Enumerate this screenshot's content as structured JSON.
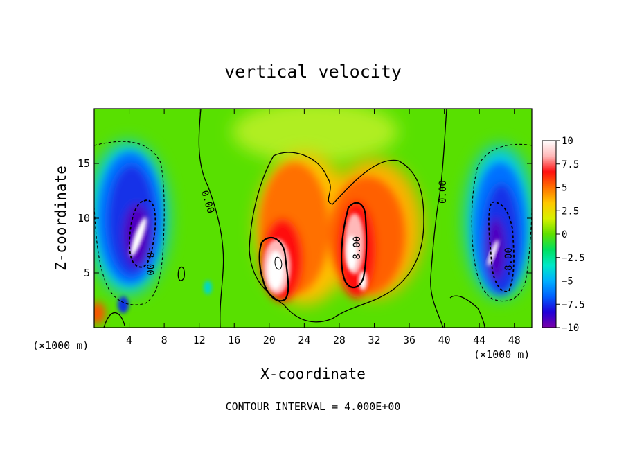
{
  "chart_data": {
    "type": "heatmap",
    "title": "vertical velocity",
    "xlabel": "X-coordinate",
    "ylabel": "Z-coordinate",
    "x_unit": "(×1000 m)",
    "x_unit_right": "(×1000 m)",
    "xlim": [
      0,
      50
    ],
    "ylim": [
      0,
      20
    ],
    "x_ticks": [
      4,
      8,
      12,
      16,
      20,
      24,
      28,
      32,
      36,
      40,
      44,
      48
    ],
    "y_ticks": [
      5,
      10,
      15
    ],
    "colorbar": {
      "range": [
        -10,
        10
      ],
      "ticks": [
        10,
        7.5,
        5,
        2.5,
        0,
        -2.5,
        -5,
        -7.5,
        -10
      ],
      "tick_labels": [
        "10",
        "7.5",
        "5",
        "2.5",
        "0",
        "−2.5",
        "−5",
        "−7.5",
        "−10"
      ]
    },
    "contour_labels": [
      {
        "text": "0.00",
        "x": 13.0,
        "z": 11.5,
        "angle": 72
      },
      {
        "text": "0.00",
        "x": 39.8,
        "z": 12.4,
        "angle": -90
      },
      {
        "text": "8.00",
        "x": 30.0,
        "z": 7.3,
        "angle": -90
      },
      {
        "text": "-8.00",
        "x": 6.4,
        "z": 6.1,
        "angle": 90
      },
      {
        "text": "-8.00",
        "x": 47.3,
        "z": 6.0,
        "angle": -90
      }
    ],
    "footer": "CONTOUR INTERVAL = 4.000E+00"
  },
  "colors": {
    "scale": [
      "#7a00a8",
      "#2000d8",
      "#0060ff",
      "#00b0ff",
      "#00e8c8",
      "#00e060",
      "#60e000",
      "#d8f000",
      "#ffc800",
      "#ff7000",
      "#ff1010",
      "#ffb8b8",
      "#ffffff"
    ]
  }
}
